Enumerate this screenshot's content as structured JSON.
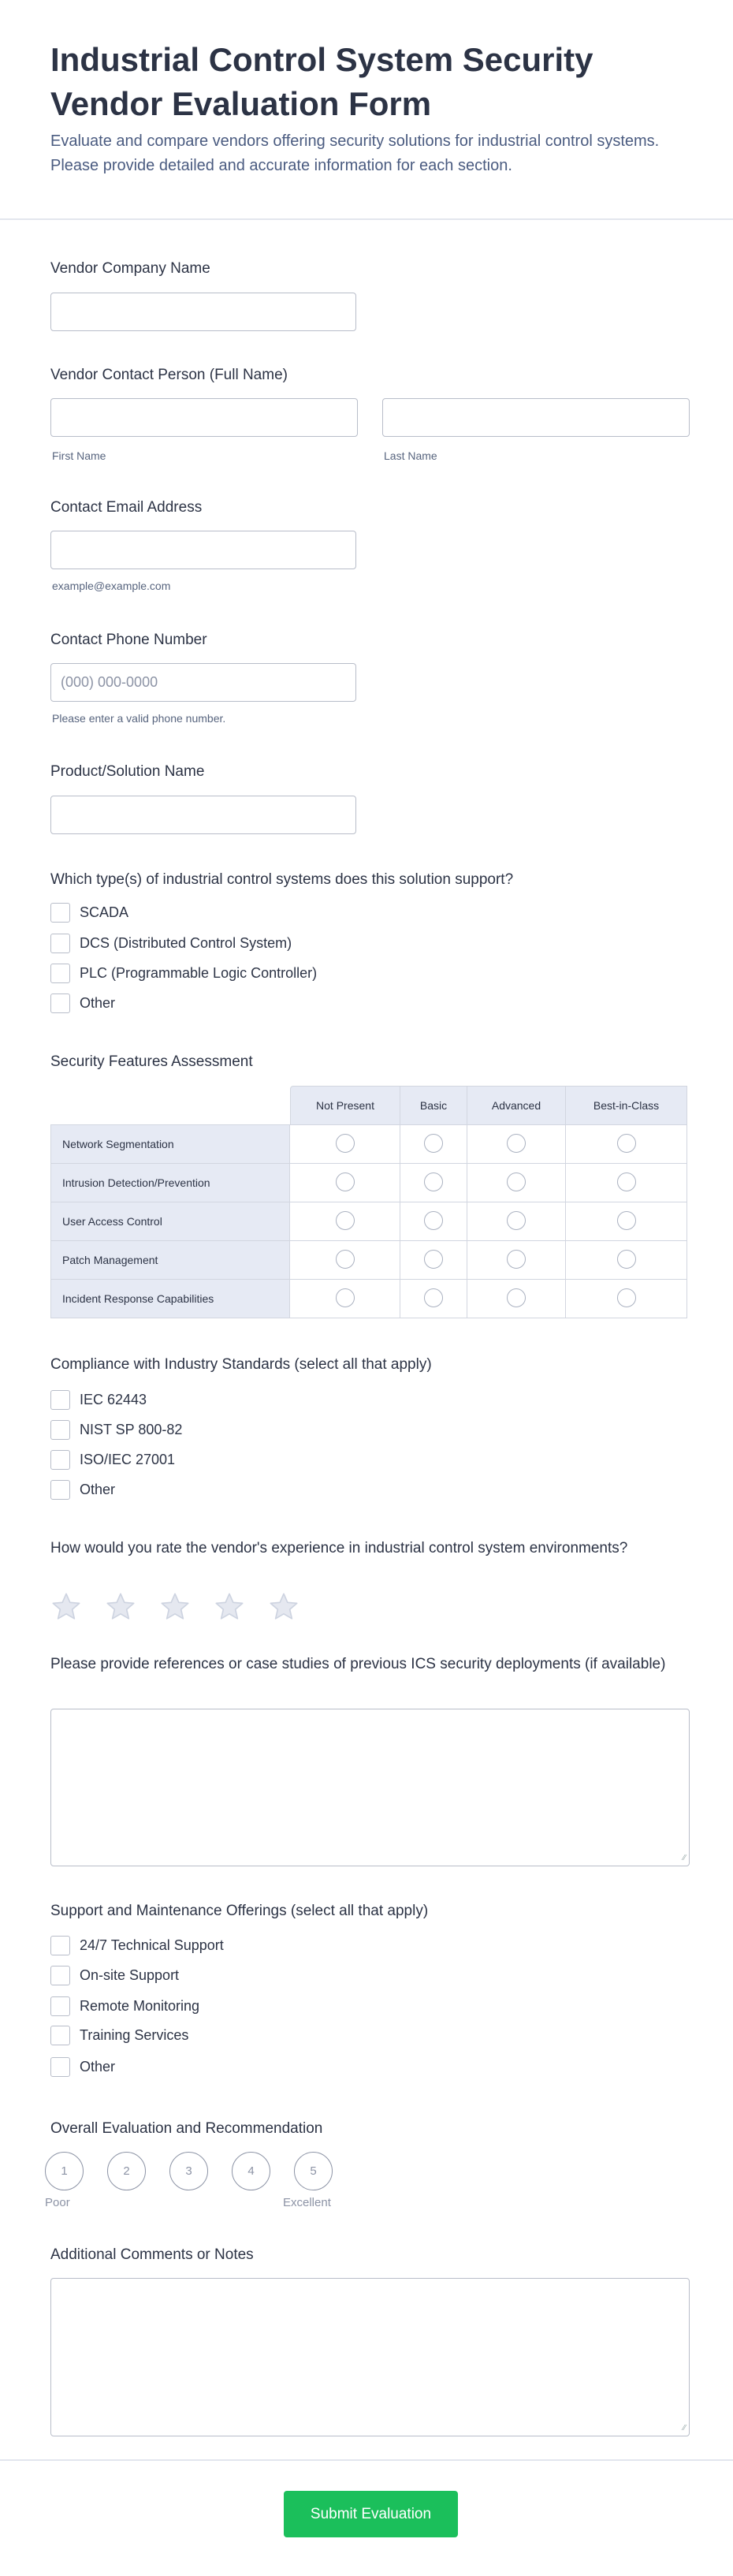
{
  "header": {
    "title": "Industrial Control System Security Vendor Evaluation Form",
    "description": "Evaluate and compare vendors offering security solutions for industrial control systems. Please provide detailed and accurate information for each section."
  },
  "fields": {
    "company": {
      "label": "Vendor Company Name"
    },
    "contact": {
      "label": "Vendor Contact Person (Full Name)",
      "first": "First Name",
      "last": "Last Name"
    },
    "email": {
      "label": "Contact Email Address",
      "help": "example@example.com"
    },
    "phone": {
      "label": "Contact Phone Number",
      "placeholder": "(000) 000-0000",
      "help": "Please enter a valid phone number."
    },
    "product": {
      "label": "Product/Solution Name"
    },
    "ics_types": {
      "label": "Which type(s) of industrial control systems does this solution support?",
      "options": [
        "SCADA",
        "DCS (Distributed Control System)",
        "PLC (Programmable Logic Controller)",
        "Other"
      ]
    },
    "matrix": {
      "label": "Security Features Assessment",
      "columns": [
        "Not Present",
        "Basic",
        "Advanced",
        "Best-in-Class"
      ],
      "rows": [
        "Network Segmentation",
        "Intrusion Detection/Prevention",
        "User Access Control",
        "Patch Management",
        "Incident Response Capabilities"
      ]
    },
    "compliance": {
      "label": "Compliance with Industry Standards (select all that apply)",
      "options": [
        "IEC 62443",
        "NIST SP 800-82",
        "ISO/IEC 27001",
        "Other"
      ]
    },
    "experience": {
      "label": "How would you rate the vendor's experience in industrial control system environments?",
      "stars": 5,
      "rating": 0
    },
    "references": {
      "label": "Please provide references or case studies of previous ICS security deployments (if available)"
    },
    "support": {
      "label": "Support and Maintenance Offerings (select all that apply)",
      "options": [
        "24/7 Technical Support",
        "On-site Support",
        "Remote Monitoring",
        "Training Services",
        "Other"
      ]
    },
    "overall": {
      "label": "Overall Evaluation and Recommendation",
      "scale": [
        "1",
        "2",
        "3",
        "4",
        "5"
      ],
      "low": "Poor",
      "high": "Excellent"
    },
    "comments": {
      "label": "Additional Comments or Notes"
    }
  },
  "submit": "Submit Evaluation",
  "colors": {
    "accent": "#1bbf5b",
    "text": "#2c3345",
    "matrix_bg": "#e6eaf4"
  }
}
